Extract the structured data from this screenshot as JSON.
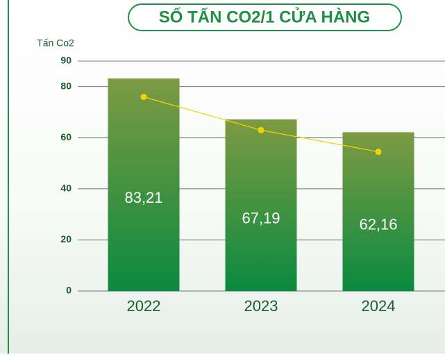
{
  "chart_data": {
    "type": "bar",
    "title": "SỐ TẤN CO2/1 CỬA HÀNG",
    "y_label": "Tấn Co2",
    "categories": [
      "2022",
      "2023",
      "2024"
    ],
    "values": [
      83.21,
      67.19,
      62.16
    ],
    "value_labels": [
      "83,21",
      "67,19",
      "62,16"
    ],
    "colors": [
      "#7d9a42",
      "#0a8a3f"
    ],
    "line": {
      "color": "#f2d500",
      "values": [
        76,
        63,
        54.5
      ]
    },
    "ylim": [
      0,
      90
    ],
    "yticks": [
      0,
      20,
      40,
      60,
      80,
      90
    ],
    "grid": true
  }
}
